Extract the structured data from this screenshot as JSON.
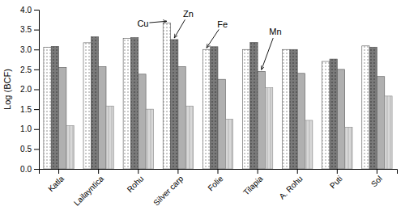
{
  "chart_data": {
    "type": "bar",
    "categories": [
      "Katla",
      "Lailayntica",
      "Rohu",
      "Silver carp",
      "Folie",
      "Tilapia",
      "A. Rohu",
      "Puti",
      "Sol"
    ],
    "series": [
      {
        "name": "Cu",
        "color": "white",
        "values": [
          3.06,
          3.17,
          3.28,
          3.67,
          3.0,
          3.0,
          3.0,
          2.7,
          3.09
        ]
      },
      {
        "name": "Zn",
        "color": "#7a7a7a",
        "values": [
          3.08,
          3.32,
          3.3,
          3.25,
          3.07,
          3.18,
          3.0,
          2.76,
          3.06
        ]
      },
      {
        "name": "Fe",
        "color": "#b0b0b0",
        "values": [
          2.55,
          2.57,
          2.38,
          2.57,
          2.25,
          2.45,
          2.4,
          2.5,
          2.32
        ]
      },
      {
        "name": "Mn",
        "color": "#d8d8d8",
        "values": [
          1.09,
          1.58,
          1.5,
          1.58,
          1.25,
          2.04,
          1.22,
          1.05,
          1.83
        ]
      }
    ],
    "ylabel": "Log (BCF)",
    "ylim": [
      0,
      4.0
    ],
    "yticks": [
      {
        "value": 0,
        "label": "0.0"
      },
      0.5,
      {
        "value": 1.0,
        "label": "1.0"
      },
      1.5,
      {
        "value": 2.0,
        "label": "2.0"
      },
      2.5,
      {
        "value": 3.0,
        "label": "3.0"
      },
      3.5,
      {
        "value": 4.0,
        "label": "4.0"
      }
    ],
    "grid": false,
    "legend": false,
    "annotations": [
      {
        "text": "Cu",
        "category": "Silver carp",
        "series": "Cu"
      },
      {
        "text": "Zn",
        "category": "Silver carp",
        "series": "Zn"
      },
      {
        "text": "Fe",
        "category": "Folie",
        "series": "Cu"
      },
      {
        "text": "Mn",
        "category": "Tilapia",
        "series": "Fe"
      }
    ]
  }
}
